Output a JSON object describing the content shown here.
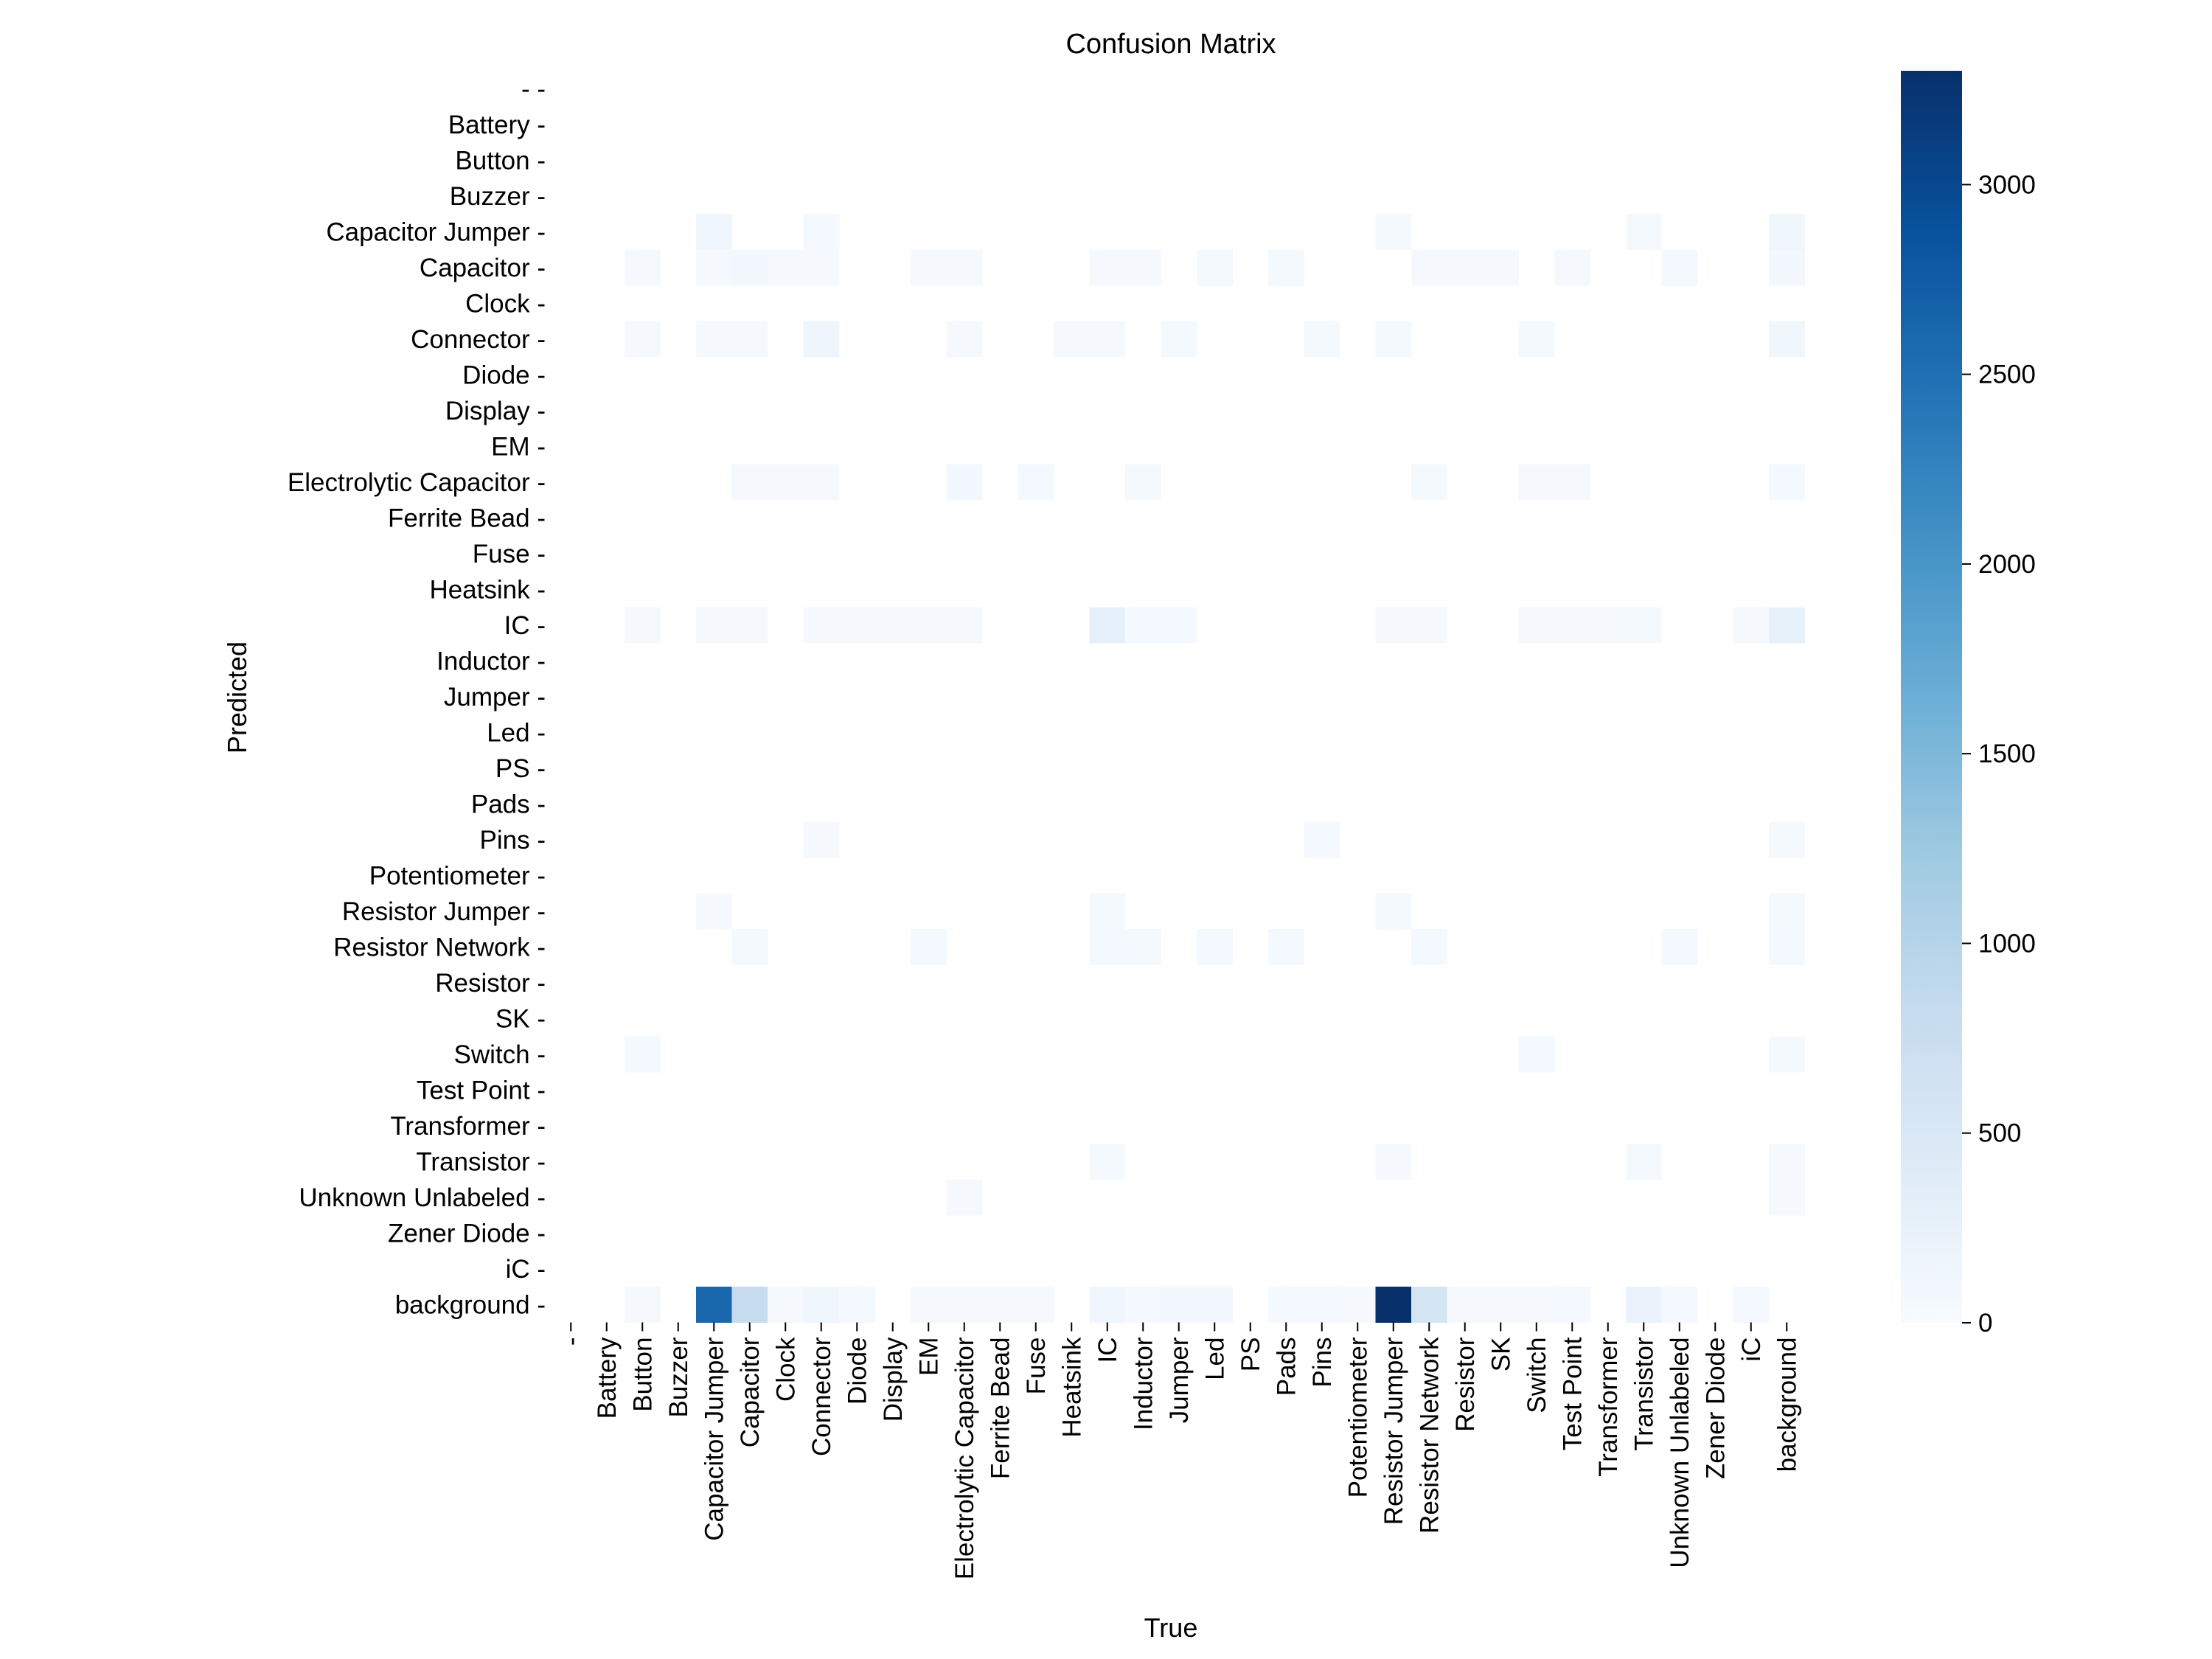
{
  "chart_data": {
    "type": "heatmap",
    "title": "Confusion Matrix",
    "xlabel": "True",
    "ylabel": "Predicted",
    "labels": [
      "-",
      "Battery",
      "Button",
      "Buzzer",
      "Capacitor Jumper",
      "Capacitor",
      "Clock",
      "Connector",
      "Diode",
      "Display",
      "EM",
      "Electrolytic Capacitor",
      "Ferrite Bead",
      "Fuse",
      "Heatsink",
      "IC",
      "Inductor",
      "Jumper",
      "Led",
      "PS",
      "Pads",
      "Pins",
      "Potentiometer",
      "Resistor Jumper",
      "Resistor Network",
      "Resistor",
      "SK",
      "Switch",
      "Test Point",
      "Transformer",
      "Transistor",
      "Unknown Unlabeled",
      "Zener Diode",
      "iC",
      "background"
    ],
    "cells": [
      {
        "pred": "Capacitor Jumper",
        "true": "Capacitor Jumper",
        "value": 120
      },
      {
        "pred": "Capacitor Jumper",
        "true": "Connector",
        "value": 60
      },
      {
        "pred": "Capacitor Jumper",
        "true": "Resistor Jumper",
        "value": 50
      },
      {
        "pred": "Capacitor Jumper",
        "true": "Transistor",
        "value": 50
      },
      {
        "pred": "Capacitor Jumper",
        "true": "background",
        "value": 140
      },
      {
        "pred": "Capacitor",
        "true": "Button",
        "value": 40
      },
      {
        "pred": "Capacitor",
        "true": "Capacitor Jumper",
        "value": 40
      },
      {
        "pred": "Capacitor",
        "true": "Capacitor",
        "value": 70
      },
      {
        "pred": "Capacitor",
        "true": "Clock",
        "value": 40
      },
      {
        "pred": "Capacitor",
        "true": "Connector",
        "value": 40
      },
      {
        "pred": "Capacitor",
        "true": "EM",
        "value": 40
      },
      {
        "pred": "Capacitor",
        "true": "Electrolytic Capacitor",
        "value": 40
      },
      {
        "pred": "Capacitor",
        "true": "IC",
        "value": 40
      },
      {
        "pred": "Capacitor",
        "true": "Inductor",
        "value": 40
      },
      {
        "pred": "Capacitor",
        "true": "Led",
        "value": 50
      },
      {
        "pred": "Capacitor",
        "true": "Pads",
        "value": 50
      },
      {
        "pred": "Capacitor",
        "true": "Resistor Network",
        "value": 40
      },
      {
        "pred": "Capacitor",
        "true": "Resistor",
        "value": 40
      },
      {
        "pred": "Capacitor",
        "true": "SK",
        "value": 40
      },
      {
        "pred": "Capacitor",
        "true": "Test Point",
        "value": 40
      },
      {
        "pred": "Capacitor",
        "true": "Unknown Unlabeled",
        "value": 60
      },
      {
        "pred": "Capacitor",
        "true": "background",
        "value": 80
      },
      {
        "pred": "Connector",
        "true": "Button",
        "value": 40
      },
      {
        "pred": "Connector",
        "true": "Capacitor Jumper",
        "value": 40
      },
      {
        "pred": "Connector",
        "true": "Capacitor",
        "value": 40
      },
      {
        "pred": "Connector",
        "true": "Connector",
        "value": 150
      },
      {
        "pred": "Connector",
        "true": "Electrolytic Capacitor",
        "value": 40
      },
      {
        "pred": "Connector",
        "true": "Heatsink",
        "value": 40
      },
      {
        "pred": "Connector",
        "true": "IC",
        "value": 40
      },
      {
        "pred": "Connector",
        "true": "Jumper",
        "value": 50
      },
      {
        "pred": "Connector",
        "true": "Pins",
        "value": 50
      },
      {
        "pred": "Connector",
        "true": "Resistor Jumper",
        "value": 50
      },
      {
        "pred": "Connector",
        "true": "Switch",
        "value": 50
      },
      {
        "pred": "Connector",
        "true": "background",
        "value": 130
      },
      {
        "pred": "Electrolytic Capacitor",
        "true": "Capacitor",
        "value": 40
      },
      {
        "pred": "Electrolytic Capacitor",
        "true": "Clock",
        "value": 40
      },
      {
        "pred": "Electrolytic Capacitor",
        "true": "Connector",
        "value": 40
      },
      {
        "pred": "Electrolytic Capacitor",
        "true": "Electrolytic Capacitor",
        "value": 80
      },
      {
        "pred": "Electrolytic Capacitor",
        "true": "Fuse",
        "value": 60
      },
      {
        "pred": "Electrolytic Capacitor",
        "true": "Inductor",
        "value": 50
      },
      {
        "pred": "Electrolytic Capacitor",
        "true": "Resistor Network",
        "value": 50
      },
      {
        "pred": "Electrolytic Capacitor",
        "true": "Switch",
        "value": 40
      },
      {
        "pred": "Electrolytic Capacitor",
        "true": "Test Point",
        "value": 40
      },
      {
        "pred": "Electrolytic Capacitor",
        "true": "background",
        "value": 60
      },
      {
        "pred": "IC",
        "true": "Button",
        "value": 40
      },
      {
        "pred": "IC",
        "true": "Capacitor Jumper",
        "value": 40
      },
      {
        "pred": "IC",
        "true": "Capacitor",
        "value": 40
      },
      {
        "pred": "IC",
        "true": "Connector",
        "value": 40
      },
      {
        "pred": "IC",
        "true": "Diode",
        "value": 40
      },
      {
        "pred": "IC",
        "true": "Display",
        "value": 40
      },
      {
        "pred": "IC",
        "true": "EM",
        "value": 40
      },
      {
        "pred": "IC",
        "true": "Electrolytic Capacitor",
        "value": 40
      },
      {
        "pred": "IC",
        "true": "IC",
        "value": 280
      },
      {
        "pred": "IC",
        "true": "Inductor",
        "value": 60
      },
      {
        "pred": "IC",
        "true": "Jumper",
        "value": 60
      },
      {
        "pred": "IC",
        "true": "Resistor Jumper",
        "value": 40
      },
      {
        "pred": "IC",
        "true": "Resistor Network",
        "value": 40
      },
      {
        "pred": "IC",
        "true": "Switch",
        "value": 40
      },
      {
        "pred": "IC",
        "true": "Test Point",
        "value": 40
      },
      {
        "pred": "IC",
        "true": "Transformer",
        "value": 40
      },
      {
        "pred": "IC",
        "true": "Transistor",
        "value": 50
      },
      {
        "pred": "IC",
        "true": "iC",
        "value": 40
      },
      {
        "pred": "IC",
        "true": "background",
        "value": 260
      },
      {
        "pred": "Pins",
        "true": "Connector",
        "value": 40
      },
      {
        "pred": "Pins",
        "true": "Pins",
        "value": 60
      },
      {
        "pred": "Pins",
        "true": "background",
        "value": 50
      },
      {
        "pred": "Resistor Jumper",
        "true": "Capacitor Jumper",
        "value": 40
      },
      {
        "pred": "Resistor Jumper",
        "true": "IC",
        "value": 50
      },
      {
        "pred": "Resistor Jumper",
        "true": "Resistor Jumper",
        "value": 50
      },
      {
        "pred": "Resistor Jumper",
        "true": "background",
        "value": 50
      },
      {
        "pred": "Resistor Network",
        "true": "Capacitor",
        "value": 50
      },
      {
        "pred": "Resistor Network",
        "true": "EM",
        "value": 60
      },
      {
        "pred": "Resistor Network",
        "true": "IC",
        "value": 60
      },
      {
        "pred": "Resistor Network",
        "true": "Inductor",
        "value": 50
      },
      {
        "pred": "Resistor Network",
        "true": "Led",
        "value": 60
      },
      {
        "pred": "Resistor Network",
        "true": "Pads",
        "value": 60
      },
      {
        "pred": "Resistor Network",
        "true": "Resistor Network",
        "value": 60
      },
      {
        "pred": "Resistor Network",
        "true": "Unknown Unlabeled",
        "value": 60
      },
      {
        "pred": "Resistor Network",
        "true": "background",
        "value": 60
      },
      {
        "pred": "Switch",
        "true": "Button",
        "value": 60
      },
      {
        "pred": "Switch",
        "true": "Switch",
        "value": 60
      },
      {
        "pred": "Switch",
        "true": "background",
        "value": 50
      },
      {
        "pred": "Transistor",
        "true": "IC",
        "value": 50
      },
      {
        "pred": "Transistor",
        "true": "Resistor Jumper",
        "value": 40
      },
      {
        "pred": "Transistor",
        "true": "Transistor",
        "value": 50
      },
      {
        "pred": "Transistor",
        "true": "background",
        "value": 40
      },
      {
        "pred": "Unknown Unlabeled",
        "true": "Electrolytic Capacitor",
        "value": 40
      },
      {
        "pred": "Unknown Unlabeled",
        "true": "background",
        "value": 40
      },
      {
        "pred": "background",
        "true": "Button",
        "value": 40
      },
      {
        "pred": "background",
        "true": "Capacitor Jumper",
        "value": 2600
      },
      {
        "pred": "background",
        "true": "Capacitor",
        "value": 800
      },
      {
        "pred": "background",
        "true": "Clock",
        "value": 40
      },
      {
        "pred": "background",
        "true": "Connector",
        "value": 130
      },
      {
        "pred": "background",
        "true": "Diode",
        "value": 60
      },
      {
        "pred": "background",
        "true": "EM",
        "value": 40
      },
      {
        "pred": "background",
        "true": "Electrolytic Capacitor",
        "value": 40
      },
      {
        "pred": "background",
        "true": "Ferrite Bead",
        "value": 40
      },
      {
        "pred": "background",
        "true": "Fuse",
        "value": 40
      },
      {
        "pred": "background",
        "true": "IC",
        "value": 120
      },
      {
        "pred": "background",
        "true": "Inductor",
        "value": 60
      },
      {
        "pred": "background",
        "true": "Jumper",
        "value": 70
      },
      {
        "pred": "background",
        "true": "Led",
        "value": 90
      },
      {
        "pred": "background",
        "true": "Pads",
        "value": 60
      },
      {
        "pred": "background",
        "true": "Pins",
        "value": 60
      },
      {
        "pred": "background",
        "true": "Potentiometer",
        "value": 40
      },
      {
        "pred": "background",
        "true": "Resistor Jumper",
        "value": 3300
      },
      {
        "pred": "background",
        "true": "Resistor Network",
        "value": 580
      },
      {
        "pred": "background",
        "true": "Resistor",
        "value": 40
      },
      {
        "pred": "background",
        "true": "SK",
        "value": 40
      },
      {
        "pred": "background",
        "true": "Switch",
        "value": 40
      },
      {
        "pred": "background",
        "true": "Test Point",
        "value": 60
      },
      {
        "pred": "background",
        "true": "Transistor",
        "value": 220
      },
      {
        "pred": "background",
        "true": "Unknown Unlabeled",
        "value": 60
      },
      {
        "pred": "background",
        "true": "iC",
        "value": 60
      }
    ],
    "colorbar": {
      "min": 0,
      "max": 3300,
      "ticks": [
        0,
        500,
        1000,
        1500,
        2000,
        2500,
        3000
      ],
      "colormap": "Blues"
    }
  }
}
